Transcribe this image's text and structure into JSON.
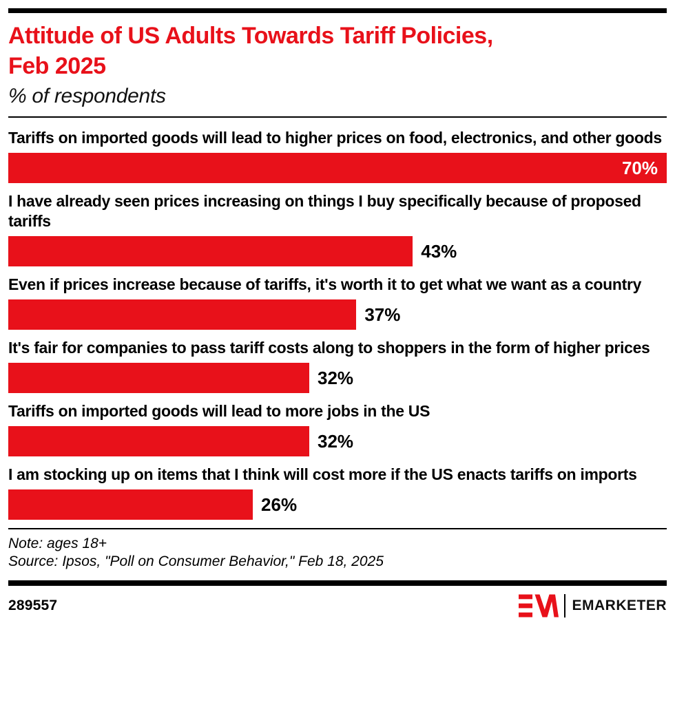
{
  "header": {
    "title_lines": [
      "Attitude of US Adults Towards Tariff Policies,",
      "Feb 2025"
    ],
    "subtitle": "% of respondents"
  },
  "colors": {
    "accent_red": "#e8111a",
    "text_black": "#000000",
    "inside_bar_label": "#ffffff"
  },
  "chart_data": {
    "type": "bar",
    "orientation": "horizontal",
    "unit": "%",
    "title": "Attitude of US Adults Towards Tariff Policies, Feb 2025",
    "subtitle": "% of respondents",
    "xlim": [
      0,
      70
    ],
    "grid": false,
    "legend": false,
    "bar_color": "#e8111a",
    "categories": [
      "Tariffs on imported goods will lead to higher prices on food, electronics, and other goods",
      "I have already seen prices increasing on things I buy specifically because of proposed tariffs",
      "Even if prices increase because of tariffs, it's worth it to get what we want as a country",
      "It's fair for companies to pass tariff costs along to shoppers in the form of higher prices",
      "Tariffs on imported goods will lead to more jobs in the US",
      "I am stocking up on items that I think will cost more if the US enacts tariffs on imports"
    ],
    "values": [
      70,
      43,
      37,
      32,
      32,
      26
    ],
    "value_labels": [
      "70%",
      "43%",
      "37%",
      "32%",
      "32%",
      "26%"
    ],
    "max_value_label_placement": "inside-right",
    "other_value_label_placement": "outside-right"
  },
  "footer": {
    "note": "Note: ages 18+",
    "source": "Source: Ipsos, \"Poll on Consumer Behavior,\" Feb 18, 2025",
    "chart_id": "289557",
    "brand": "EMARKETER"
  }
}
